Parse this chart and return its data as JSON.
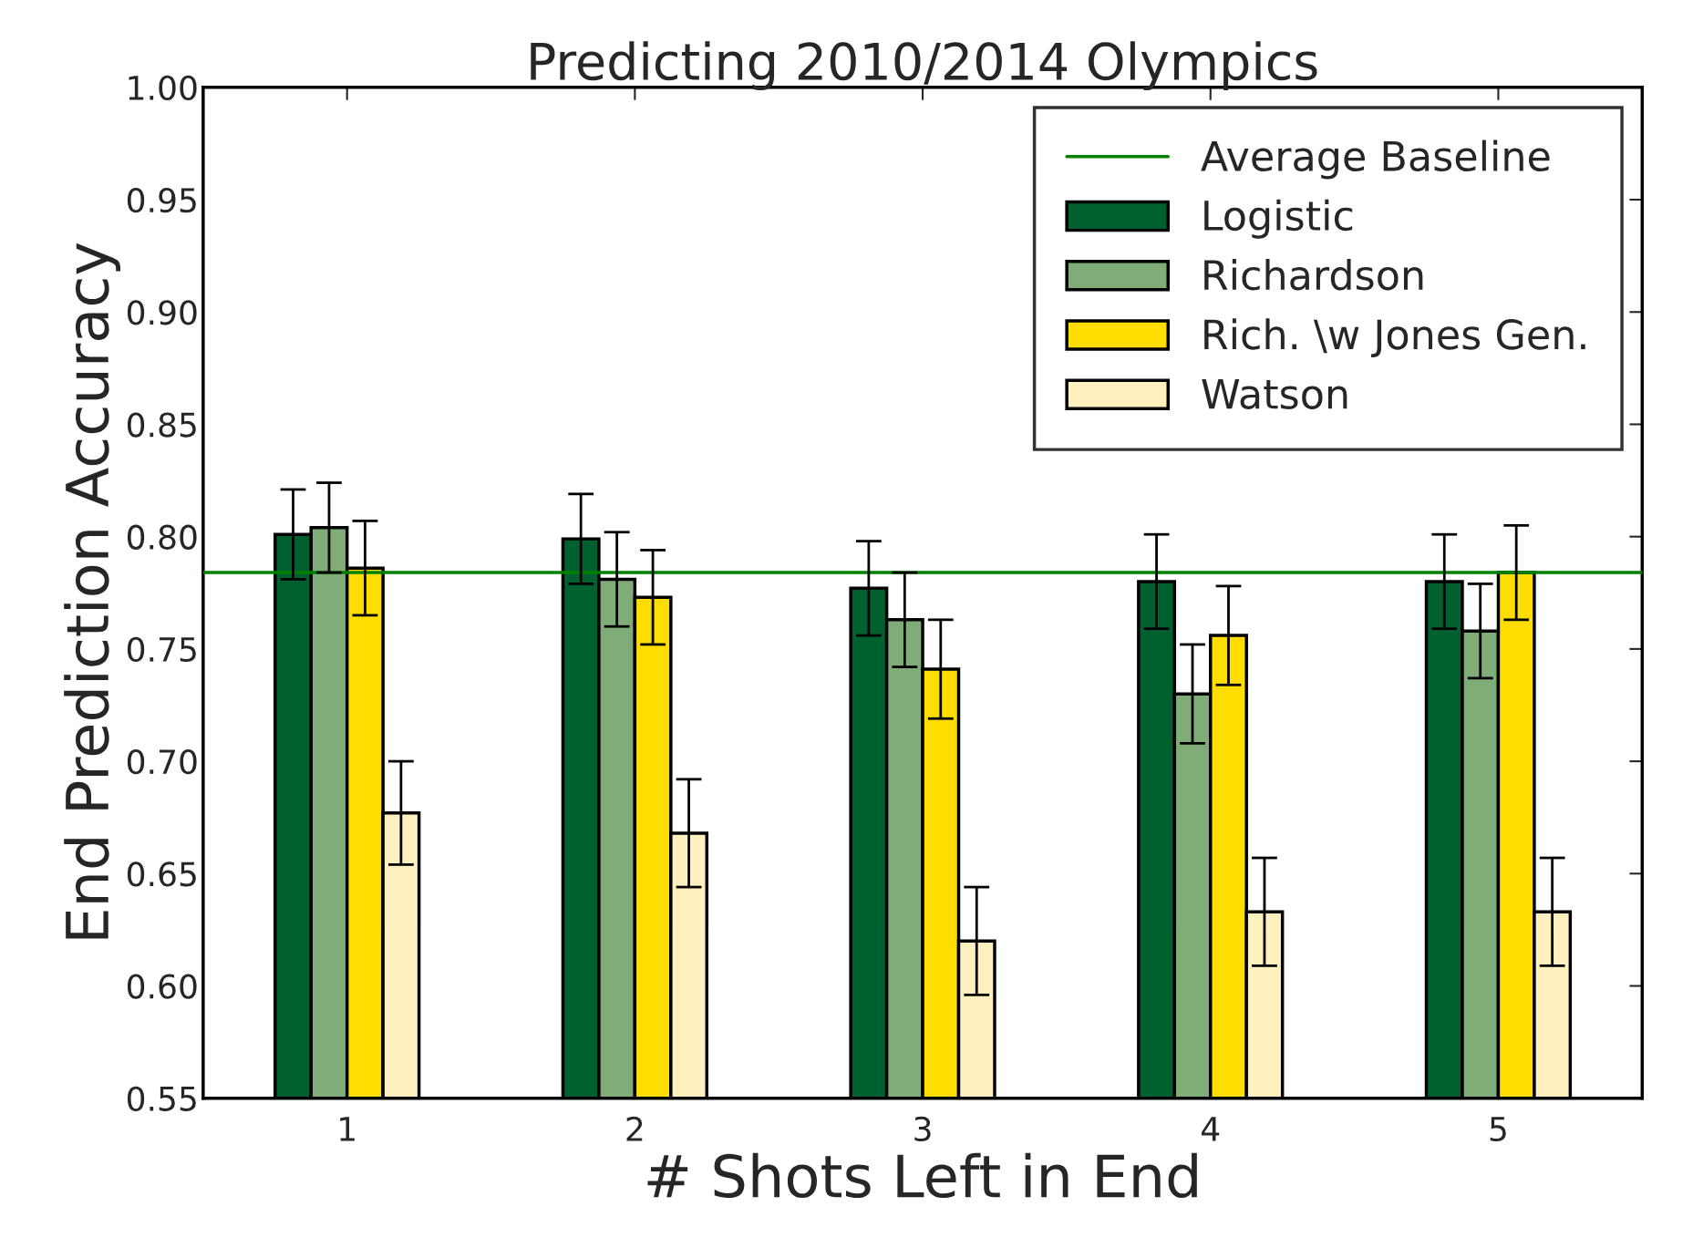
{
  "chart_data": {
    "type": "bar",
    "title": "Predicting 2010/2014 Olympics",
    "xlabel": "# Shots Left in End",
    "ylabel": "End Prediction Accuracy",
    "categories": [
      "1",
      "2",
      "3",
      "4",
      "5"
    ],
    "series": [
      {
        "name": "Logistic",
        "color": "#006030",
        "values": [
          0.801,
          0.799,
          0.777,
          0.78,
          0.78
        ],
        "errors": [
          0.02,
          0.02,
          0.021,
          0.021,
          0.021
        ]
      },
      {
        "name": "Richardson",
        "color": "#80ac78",
        "values": [
          0.804,
          0.781,
          0.763,
          0.73,
          0.758
        ],
        "errors": [
          0.02,
          0.021,
          0.021,
          0.022,
          0.021
        ]
      },
      {
        "name": "Rich. \\w Jones Gen.",
        "color": "#ffdd00",
        "values": [
          0.786,
          0.773,
          0.741,
          0.756,
          0.784
        ],
        "errors": [
          0.021,
          0.021,
          0.022,
          0.022,
          0.021
        ]
      },
      {
        "name": "Watson",
        "color": "#fff0c0",
        "values": [
          0.677,
          0.668,
          0.62,
          0.633,
          0.633
        ],
        "errors": [
          0.023,
          0.024,
          0.024,
          0.024,
          0.024
        ]
      }
    ],
    "ref_lines": [
      {
        "axis": "y",
        "value": 0.784,
        "label": "Average Baseline",
        "color": "#008000",
        "line_style": "solid"
      }
    ],
    "ylim": [
      0.55,
      1.0
    ],
    "yticks": [
      {
        "value": 0.55,
        "label": "0.55"
      },
      {
        "value": 0.6,
        "label": "0.60"
      },
      {
        "value": 0.65,
        "label": "0.65"
      },
      {
        "value": 0.7,
        "label": "0.70"
      },
      {
        "value": 0.75,
        "label": "0.75"
      },
      {
        "value": 0.8,
        "label": "0.80"
      },
      {
        "value": 0.85,
        "label": "0.85"
      },
      {
        "value": 0.9,
        "label": "0.90"
      },
      {
        "value": 0.95,
        "label": "0.95"
      },
      {
        "value": 1.0,
        "label": "1.00"
      }
    ],
    "grid": false,
    "legend": "top right"
  }
}
